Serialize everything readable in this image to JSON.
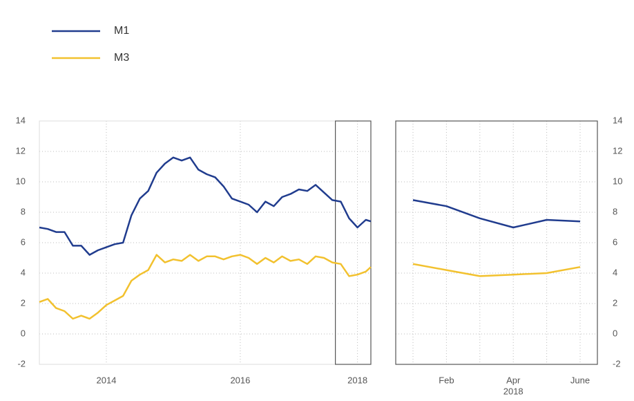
{
  "chart_data": [
    {
      "type": "line",
      "x": [
        2013.5,
        2013.625,
        2013.75,
        2013.875,
        2014.0,
        2014.125,
        2014.25,
        2014.375,
        2014.5,
        2014.625,
        2014.75,
        2014.875,
        2015.0,
        2015.125,
        2015.25,
        2015.375,
        2015.5,
        2015.625,
        2015.75,
        2015.875,
        2016.0,
        2016.125,
        2016.25,
        2016.375,
        2016.5,
        2016.625,
        2016.75,
        2016.875,
        2017.0,
        2017.125,
        2017.25,
        2017.375,
        2017.5,
        2017.625,
        2017.75,
        2017.875,
        2018.0,
        2018.125,
        2018.25,
        2018.375,
        2018.45
      ],
      "series": [
        {
          "name": "M1",
          "color": "#203c8e",
          "values": [
            7.0,
            6.9,
            6.7,
            6.7,
            5.8,
            5.8,
            5.2,
            5.5,
            5.7,
            5.9,
            6.0,
            7.8,
            8.9,
            9.4,
            10.6,
            11.2,
            11.6,
            11.4,
            11.6,
            10.8,
            10.5,
            10.3,
            9.7,
            8.9,
            8.7,
            8.5,
            8.0,
            8.7,
            8.4,
            9.0,
            9.2,
            9.5,
            9.4,
            9.8,
            9.3,
            8.8,
            8.7,
            7.6,
            7.0,
            7.5,
            7.4
          ]
        },
        {
          "name": "M3",
          "color": "#f2c12e",
          "values": [
            2.1,
            2.3,
            1.7,
            1.5,
            1.0,
            1.2,
            1.0,
            1.4,
            1.9,
            2.2,
            2.5,
            3.5,
            3.9,
            4.2,
            5.2,
            4.7,
            4.9,
            4.8,
            5.2,
            4.8,
            5.1,
            5.1,
            4.9,
            5.1,
            5.2,
            5.0,
            4.6,
            5.0,
            4.7,
            5.1,
            4.8,
            4.9,
            4.6,
            5.1,
            5.0,
            4.7,
            4.6,
            3.8,
            3.9,
            4.1,
            4.4
          ]
        }
      ],
      "xlim": [
        2013.5,
        2018.45
      ],
      "xticks": [
        {
          "value": 2014.5,
          "label": "2014"
        },
        {
          "value": 2016.5,
          "label": "2016"
        },
        {
          "value": 2018.25,
          "label": "2018"
        }
      ],
      "ylim": [
        -2,
        14
      ],
      "yticks": [
        -2,
        0,
        2,
        4,
        6,
        8,
        10,
        12,
        14
      ],
      "highlight_xrange": [
        2017.92,
        2018.45
      ],
      "grid": true,
      "yaxis_side": "left"
    },
    {
      "type": "line",
      "categories": [
        null,
        "Feb",
        null,
        "Apr",
        null,
        "June"
      ],
      "xlabel": "2018",
      "series": [
        {
          "name": "M1",
          "color": "#203c8e",
          "values": [
            8.8,
            8.4,
            7.6,
            7.0,
            7.5,
            7.4
          ]
        },
        {
          "name": "M3",
          "color": "#f2c12e",
          "values": [
            4.6,
            4.2,
            3.8,
            3.9,
            4.0,
            4.4
          ]
        }
      ],
      "ylim": [
        -2,
        14
      ],
      "yticks": [
        -2,
        0,
        2,
        4,
        6,
        8,
        10,
        12,
        14
      ],
      "grid": true,
      "yaxis_side": "right"
    }
  ]
}
